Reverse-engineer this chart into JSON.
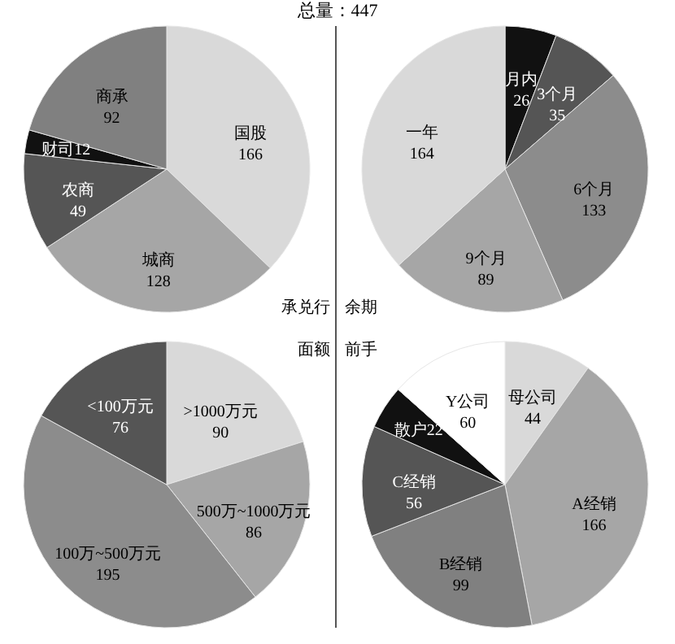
{
  "chart_data": [
    {
      "type": "pie",
      "title": "承兑行",
      "annotations": [
        "总量：447"
      ],
      "categories": [
        "国股",
        "城商",
        "农商",
        "财司",
        "商承"
      ],
      "values": [
        166,
        128,
        49,
        12,
        92
      ],
      "colors": [
        "#d9d9d9",
        "#a6a6a6",
        "#555555",
        "#111111",
        "#808080"
      ],
      "data_labels": true
    },
    {
      "type": "pie",
      "title": "余期",
      "categories": [
        "月内",
        "3个月",
        "6个月",
        "9个月",
        "一年"
      ],
      "values": [
        26,
        35,
        133,
        89,
        164
      ],
      "colors": [
        "#111111",
        "#555555",
        "#8c8c8c",
        "#a6a6a6",
        "#d9d9d9"
      ],
      "data_labels": true
    },
    {
      "type": "pie",
      "title": "面额",
      "categories": [
        ">1000万元",
        "500万~1000万元",
        "100万~500万元",
        "<100万元"
      ],
      "values": [
        90,
        86,
        195,
        76
      ],
      "colors": [
        "#d9d9d9",
        "#a6a6a6",
        "#8c8c8c",
        "#555555"
      ],
      "data_labels": true
    },
    {
      "type": "pie",
      "title": "前手",
      "categories": [
        "母公司",
        "A经销",
        "B经销",
        "C经销",
        "散户",
        "Y公司"
      ],
      "values": [
        44,
        166,
        99,
        56,
        22,
        60
      ],
      "colors": [
        "#d9d9d9",
        "#a6a6a6",
        "#808080",
        "#555555",
        "#111111",
        "#ffffff"
      ],
      "data_labels": true
    }
  ]
}
